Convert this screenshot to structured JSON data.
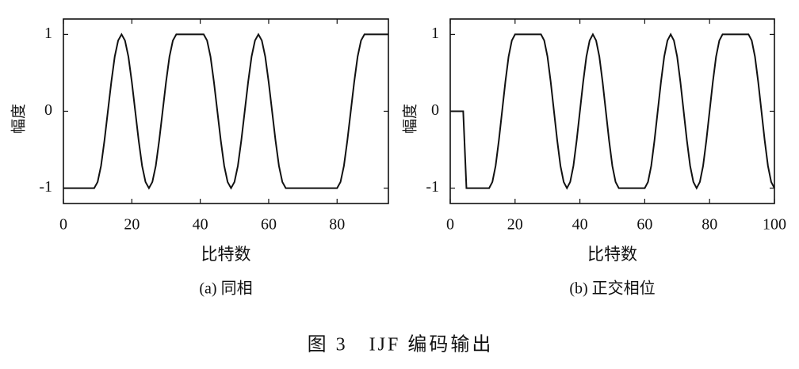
{
  "figure_title": "图 3　IJF 编码输出",
  "chart_data": [
    {
      "type": "line",
      "caption": "(a) 同相",
      "xlabel": "比特数",
      "ylabel": "幅度",
      "color": "#111111",
      "xlim": [
        0,
        95
      ],
      "ylim": [
        -1.2,
        1.2
      ],
      "xticks": [
        0,
        20,
        40,
        60,
        80
      ],
      "yticks": [
        -1,
        0,
        1
      ],
      "x": [
        0,
        9,
        10,
        11,
        12,
        13,
        14,
        15,
        16,
        17,
        18,
        19,
        20,
        21,
        22,
        23,
        24,
        25,
        26,
        27,
        28,
        29,
        30,
        31,
        32,
        33,
        41,
        42,
        43,
        44,
        45,
        46,
        47,
        48,
        49,
        50,
        51,
        52,
        53,
        54,
        55,
        56,
        57,
        58,
        59,
        60,
        61,
        62,
        63,
        64,
        65,
        80,
        81,
        82,
        83,
        84,
        85,
        86,
        87,
        88,
        95
      ],
      "values": [
        -1,
        -1,
        -0.92,
        -0.71,
        -0.38,
        0,
        0.38,
        0.71,
        0.92,
        1,
        0.92,
        0.71,
        0.38,
        0,
        -0.38,
        -0.71,
        -0.92,
        -1,
        -0.92,
        -0.71,
        -0.38,
        0,
        0.38,
        0.71,
        0.92,
        1,
        1,
        0.92,
        0.71,
        0.38,
        0,
        -0.38,
        -0.71,
        -0.92,
        -1,
        -0.92,
        -0.71,
        -0.38,
        0,
        0.38,
        0.71,
        0.92,
        1,
        0.92,
        0.71,
        0.38,
        0,
        -0.38,
        -0.71,
        -0.92,
        -1,
        -1,
        -0.92,
        -0.71,
        -0.38,
        0,
        0.38,
        0.71,
        0.92,
        1,
        1
      ]
    },
    {
      "type": "line",
      "caption": "(b) 正交相位",
      "xlabel": "比特数",
      "ylabel": "幅度",
      "color": "#111111",
      "xlim": [
        0,
        100
      ],
      "ylim": [
        -1.2,
        1.2
      ],
      "xticks": [
        0,
        20,
        40,
        60,
        80,
        100
      ],
      "yticks": [
        -1,
        0,
        1
      ],
      "x": [
        0,
        4,
        5,
        12,
        13,
        14,
        15,
        16,
        17,
        18,
        19,
        20,
        28,
        29,
        30,
        31,
        32,
        33,
        34,
        35,
        36,
        37,
        38,
        39,
        40,
        41,
        42,
        43,
        44,
        45,
        46,
        47,
        48,
        49,
        50,
        51,
        52,
        60,
        61,
        62,
        63,
        64,
        65,
        66,
        67,
        68,
        69,
        70,
        71,
        72,
        73,
        74,
        75,
        76,
        77,
        78,
        79,
        80,
        81,
        82,
        83,
        84,
        92,
        93,
        94,
        95,
        96,
        97,
        98,
        99,
        100
      ],
      "values": [
        0,
        0,
        -1,
        -1,
        -0.92,
        -0.71,
        -0.38,
        0,
        0.38,
        0.71,
        0.92,
        1,
        1,
        0.92,
        0.71,
        0.38,
        0,
        -0.38,
        -0.71,
        -0.92,
        -1,
        -0.92,
        -0.71,
        -0.38,
        0,
        0.38,
        0.71,
        0.92,
        1,
        0.92,
        0.71,
        0.38,
        0,
        -0.38,
        -0.71,
        -0.92,
        -1,
        -1,
        -0.92,
        -0.71,
        -0.38,
        0,
        0.38,
        0.71,
        0.92,
        1,
        0.92,
        0.71,
        0.38,
        0,
        -0.38,
        -0.71,
        -0.92,
        -1,
        -0.92,
        -0.71,
        -0.38,
        0,
        0.38,
        0.71,
        0.92,
        1,
        1,
        0.92,
        0.71,
        0.38,
        0,
        -0.38,
        -0.71,
        -0.92,
        -1
      ]
    }
  ]
}
